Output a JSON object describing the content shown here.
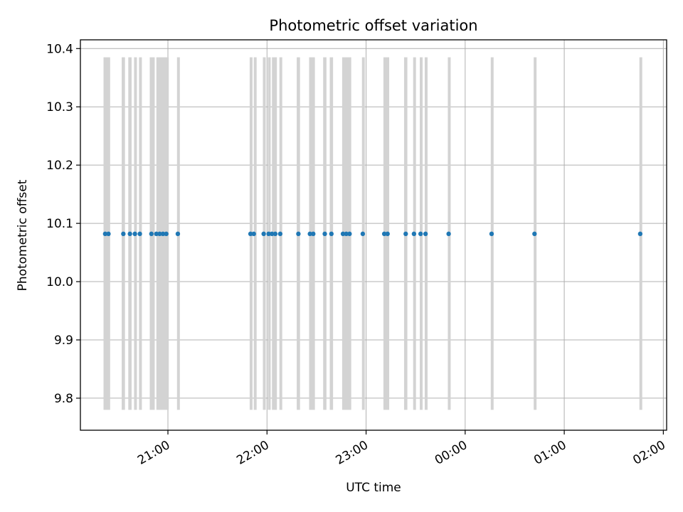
{
  "chart_data": {
    "type": "scatter",
    "title": "Photometric offset variation",
    "xlabel": "UTC time",
    "ylabel": "Photometric offset",
    "x_axis_type": "time",
    "xlim": [
      "2023-01-01T20:07:00",
      "2023-01-02T02:02:00"
    ],
    "ylim": [
      9.745,
      10.415
    ],
    "xticks": [
      {
        "t": "2023-01-01T21:00:00",
        "label": "21:00"
      },
      {
        "t": "2023-01-01T22:00:00",
        "label": "22:00"
      },
      {
        "t": "2023-01-01T23:00:00",
        "label": "23:00"
      },
      {
        "t": "2023-01-02T00:00:00",
        "label": "00:00"
      },
      {
        "t": "2023-01-02T01:00:00",
        "label": "01:00"
      },
      {
        "t": "2023-01-02T02:00:00",
        "label": "02:00"
      }
    ],
    "yticks": [
      {
        "v": 9.8,
        "label": "9.8"
      },
      {
        "v": 9.9,
        "label": "9.9"
      },
      {
        "v": 10.0,
        "label": "10.0"
      },
      {
        "v": 10.1,
        "label": "10.1"
      },
      {
        "v": 10.2,
        "label": "10.2"
      },
      {
        "v": 10.3,
        "label": "10.3"
      },
      {
        "v": 10.4,
        "label": "10.4"
      }
    ],
    "grid": true,
    "marker_color": "#1f77b4",
    "band_color": "#d3d3d3",
    "band_range": [
      9.78,
      10.385
    ],
    "points": [
      {
        "t": "2023-01-01T20:22:00",
        "v": 10.082
      },
      {
        "t": "2023-01-01T20:24:00",
        "v": 10.082
      },
      {
        "t": "2023-01-01T20:33:00",
        "v": 10.082
      },
      {
        "t": "2023-01-01T20:37:00",
        "v": 10.082
      },
      {
        "t": "2023-01-01T20:40:00",
        "v": 10.082
      },
      {
        "t": "2023-01-01T20:43:00",
        "v": 10.082
      },
      {
        "t": "2023-01-01T20:50:00",
        "v": 10.082
      },
      {
        "t": "2023-01-01T20:53:00",
        "v": 10.082
      },
      {
        "t": "2023-01-01T20:55:00",
        "v": 10.082
      },
      {
        "t": "2023-01-01T20:57:00",
        "v": 10.082
      },
      {
        "t": "2023-01-01T20:59:00",
        "v": 10.082
      },
      {
        "t": "2023-01-01T21:06:00",
        "v": 10.082
      },
      {
        "t": "2023-01-01T21:50:00",
        "v": 10.082
      },
      {
        "t": "2023-01-01T21:52:00",
        "v": 10.082
      },
      {
        "t": "2023-01-01T21:58:00",
        "v": 10.082
      },
      {
        "t": "2023-01-01T22:01:00",
        "v": 10.082
      },
      {
        "t": "2023-01-01T22:03:00",
        "v": 10.082
      },
      {
        "t": "2023-01-01T22:05:00",
        "v": 10.082
      },
      {
        "t": "2023-01-01T22:08:00",
        "v": 10.082
      },
      {
        "t": "2023-01-01T22:19:00",
        "v": 10.082
      },
      {
        "t": "2023-01-01T22:26:00",
        "v": 10.082
      },
      {
        "t": "2023-01-01T22:28:00",
        "v": 10.082
      },
      {
        "t": "2023-01-01T22:35:00",
        "v": 10.082
      },
      {
        "t": "2023-01-01T22:39:00",
        "v": 10.082
      },
      {
        "t": "2023-01-01T22:46:00",
        "v": 10.082
      },
      {
        "t": "2023-01-01T22:48:00",
        "v": 10.082
      },
      {
        "t": "2023-01-01T22:50:00",
        "v": 10.082
      },
      {
        "t": "2023-01-01T22:58:00",
        "v": 10.082
      },
      {
        "t": "2023-01-01T23:11:00",
        "v": 10.082
      },
      {
        "t": "2023-01-01T23:13:00",
        "v": 10.082
      },
      {
        "t": "2023-01-01T23:24:00",
        "v": 10.082
      },
      {
        "t": "2023-01-01T23:29:00",
        "v": 10.082
      },
      {
        "t": "2023-01-01T23:33:00",
        "v": 10.082
      },
      {
        "t": "2023-01-01T23:36:00",
        "v": 10.082
      },
      {
        "t": "2023-01-01T23:50:00",
        "v": 10.082
      },
      {
        "t": "2023-01-02T00:16:00",
        "v": 10.082
      },
      {
        "t": "2023-01-02T00:42:00",
        "v": 10.082
      },
      {
        "t": "2023-01-02T01:46:00",
        "v": 10.082
      }
    ],
    "bands": [
      {
        "start": "2023-01-01T20:21:00",
        "end": "2023-01-01T20:25:00"
      },
      {
        "start": "2023-01-01T20:32:00",
        "end": "2023-01-01T20:34:00"
      },
      {
        "start": "2023-01-01T20:36:00",
        "end": "2023-01-01T20:38:00"
      },
      {
        "start": "2023-01-01T20:39:30",
        "end": "2023-01-01T20:41:00"
      },
      {
        "start": "2023-01-01T20:42:30",
        "end": "2023-01-01T20:44:00"
      },
      {
        "start": "2023-01-01T20:49:00",
        "end": "2023-01-01T20:52:00"
      },
      {
        "start": "2023-01-01T20:53:00",
        "end": "2023-01-01T21:00:30"
      },
      {
        "start": "2023-01-01T21:05:30",
        "end": "2023-01-01T21:07:00"
      },
      {
        "start": "2023-01-01T21:49:30",
        "end": "2023-01-01T21:51:00"
      },
      {
        "start": "2023-01-01T21:52:00",
        "end": "2023-01-01T21:53:30"
      },
      {
        "start": "2023-01-01T21:57:30",
        "end": "2023-01-01T21:59:00"
      },
      {
        "start": "2023-01-01T22:00:30",
        "end": "2023-01-01T22:02:00"
      },
      {
        "start": "2023-01-01T22:03:00",
        "end": "2023-01-01T22:06:00"
      },
      {
        "start": "2023-01-01T22:07:30",
        "end": "2023-01-01T22:09:00"
      },
      {
        "start": "2023-01-01T22:18:00",
        "end": "2023-01-01T22:20:00"
      },
      {
        "start": "2023-01-01T22:25:30",
        "end": "2023-01-01T22:29:00"
      },
      {
        "start": "2023-01-01T22:34:00",
        "end": "2023-01-01T22:36:00"
      },
      {
        "start": "2023-01-01T22:38:00",
        "end": "2023-01-01T22:40:00"
      },
      {
        "start": "2023-01-01T22:45:30",
        "end": "2023-01-01T22:51:00"
      },
      {
        "start": "2023-01-01T22:57:30",
        "end": "2023-01-01T22:59:00"
      },
      {
        "start": "2023-01-01T23:10:30",
        "end": "2023-01-01T23:14:00"
      },
      {
        "start": "2023-01-01T23:23:00",
        "end": "2023-01-01T23:25:00"
      },
      {
        "start": "2023-01-01T23:28:30",
        "end": "2023-01-01T23:30:00"
      },
      {
        "start": "2023-01-01T23:32:30",
        "end": "2023-01-01T23:34:00"
      },
      {
        "start": "2023-01-01T23:35:30",
        "end": "2023-01-01T23:37:00"
      },
      {
        "start": "2023-01-01T23:49:30",
        "end": "2023-01-01T23:51:00"
      },
      {
        "start": "2023-01-02T00:15:30",
        "end": "2023-01-02T00:17:00"
      },
      {
        "start": "2023-01-02T00:41:30",
        "end": "2023-01-02T00:43:00"
      },
      {
        "start": "2023-01-02T01:45:30",
        "end": "2023-01-02T01:47:00"
      }
    ]
  }
}
